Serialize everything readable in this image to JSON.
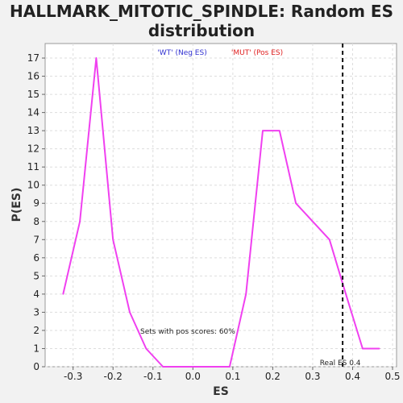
{
  "chart_data": {
    "type": "line",
    "title_line1": "HALLMARK_MITOTIC_SPINDLE: Random ES",
    "title_line2": "distribution",
    "xlabel": "ES",
    "ylabel": "P(ES)",
    "xlim": [
      -0.37,
      0.51
    ],
    "ylim": [
      0,
      17.8
    ],
    "xticks": [
      "-0.3",
      "-0.2",
      "-0.1",
      "0.0",
      "0.1",
      "0.2",
      "0.3",
      "0.4",
      "0.5"
    ],
    "xtick_values": [
      -0.3,
      -0.2,
      -0.1,
      0.0,
      0.1,
      0.2,
      0.3,
      0.4,
      0.5
    ],
    "yticks": [
      0,
      1,
      2,
      3,
      4,
      5,
      6,
      7,
      8,
      9,
      10,
      11,
      12,
      13,
      14,
      15,
      16,
      17
    ],
    "grid": true,
    "series": [
      {
        "color": "#f040f0",
        "x": [
          -0.325,
          -0.283,
          -0.242,
          -0.2,
          -0.158,
          -0.117,
          -0.075,
          -0.033,
          0.008,
          0.05,
          0.092,
          0.133,
          0.175,
          0.217,
          0.258,
          0.3,
          0.342,
          0.383,
          0.425,
          0.467
        ],
        "y": [
          4,
          8,
          17,
          7,
          3,
          1,
          0,
          0,
          0,
          0,
          0,
          4,
          13,
          13,
          9,
          8,
          7,
          4,
          1,
          1
        ]
      }
    ],
    "legend": {
      "placement": "top",
      "items": [
        {
          "label": "'WT' (Neg ES)",
          "color": "#3030d0"
        },
        {
          "label": "'MUT' (Pos ES)",
          "color": "#e02020"
        }
      ]
    },
    "real_es": {
      "value": 0.375,
      "label": "Real ES 0.4"
    },
    "annotation": "Sets with pos scores: 60%"
  }
}
